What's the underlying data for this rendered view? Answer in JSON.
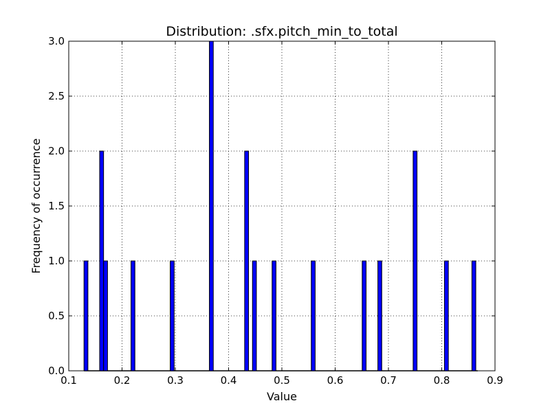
{
  "chart_data": {
    "type": "bar",
    "title": "Distribution: .sfx.pitch_min_to_total",
    "xlabel": "Value",
    "ylabel": "Frequency of occurrence",
    "xlim": [
      0.1,
      0.9
    ],
    "ylim": [
      0.0,
      3.0
    ],
    "x_ticks": [
      "0.1",
      "0.2",
      "0.3",
      "0.4",
      "0.5",
      "0.6",
      "0.7",
      "0.8",
      "0.9"
    ],
    "y_ticks": [
      "0.0",
      "0.5",
      "1.0",
      "1.5",
      "2.0",
      "2.5",
      "3.0"
    ],
    "grid": true,
    "bar_color": "#0000ff",
    "bin_width": 0.00735,
    "bins": [
      {
        "x": 0.1323,
        "value": 1
      },
      {
        "x": 0.1617,
        "value": 2
      },
      {
        "x": 0.1691,
        "value": 1
      },
      {
        "x": 0.2205,
        "value": 1
      },
      {
        "x": 0.2941,
        "value": 1
      },
      {
        "x": 0.3676,
        "value": 3
      },
      {
        "x": 0.4338,
        "value": 2
      },
      {
        "x": 0.4485,
        "value": 1
      },
      {
        "x": 0.4853,
        "value": 1
      },
      {
        "x": 0.5588,
        "value": 1
      },
      {
        "x": 0.6544,
        "value": 1
      },
      {
        "x": 0.6838,
        "value": 1
      },
      {
        "x": 0.75,
        "value": 2
      },
      {
        "x": 0.8088,
        "value": 1
      },
      {
        "x": 0.8603,
        "value": 1
      }
    ]
  }
}
